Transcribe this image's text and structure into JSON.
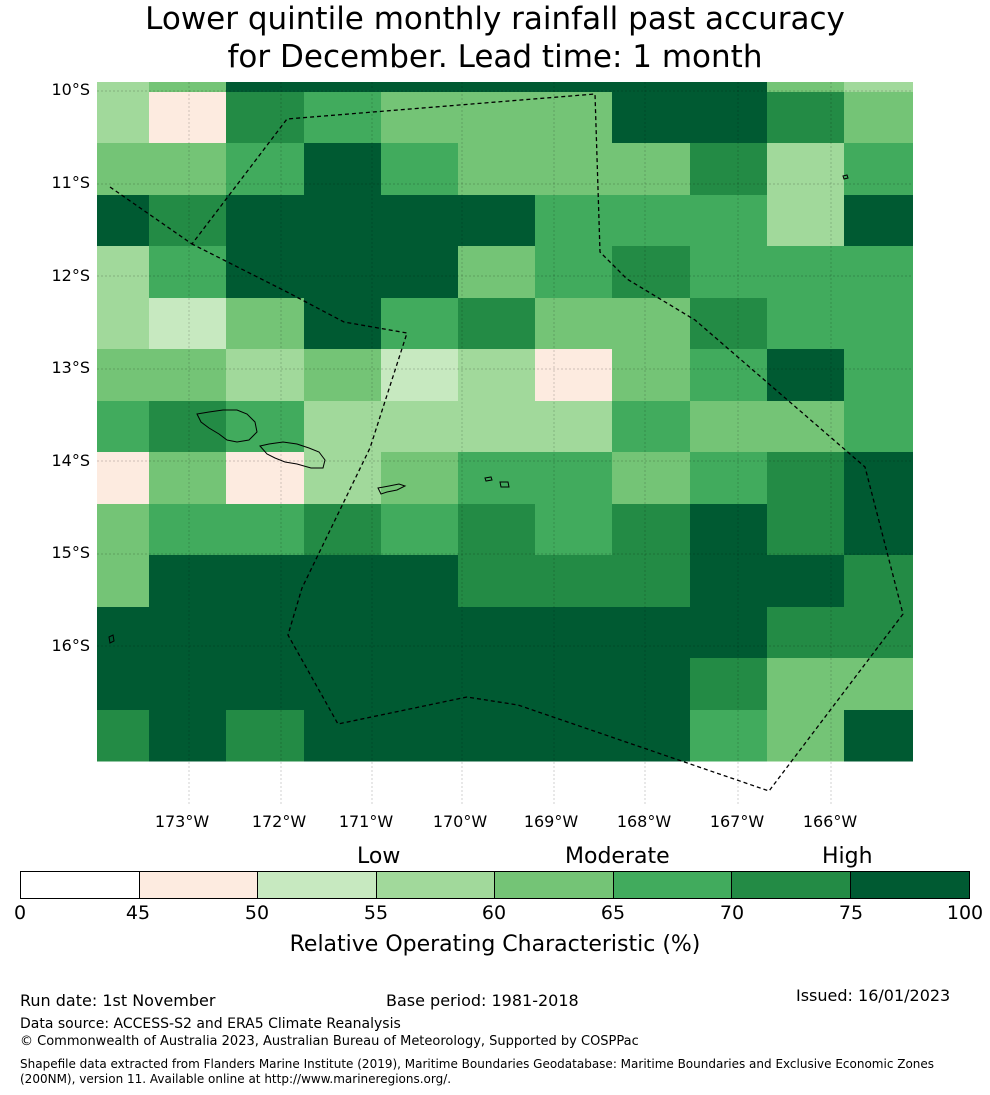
{
  "title": {
    "line1": "Lower quintile monthly rainfall past accuracy",
    "line2": "for December. Lead time: 1 month"
  },
  "axes": {
    "y_labels": [
      "10°S",
      "11°S",
      "12°S",
      "13°S",
      "14°S",
      "15°S",
      "16°S"
    ],
    "x_labels": [
      "173°W",
      "172°W",
      "171°W",
      "170°W",
      "169°W",
      "168°W",
      "167°W",
      "166°W"
    ]
  },
  "chart_data": {
    "type": "heatmap",
    "description_title": "Lower quintile monthly rainfall past accuracy for December. Lead time: 1 month",
    "x_range_deg": [
      -174.0,
      -165.2
    ],
    "y_range_deg": [
      -17.7,
      -9.9
    ],
    "grid_columns": 11,
    "grid_rows": 14,
    "palette": [
      "#ffffff",
      "#fdebe0",
      "#c7e9c0",
      "#a1d99b",
      "#74c476",
      "#41ab5d",
      "#238b45",
      "#005a32"
    ],
    "bins": [
      0,
      45,
      50,
      55,
      60,
      65,
      70,
      75,
      100
    ],
    "cells": [
      [
        3,
        4,
        7,
        7,
        7,
        7,
        7,
        7,
        7,
        4,
        3
      ],
      [
        3,
        1,
        6,
        5,
        4,
        4,
        4,
        7,
        7,
        6,
        4
      ],
      [
        4,
        4,
        5,
        7,
        5,
        4,
        4,
        4,
        6,
        3,
        5
      ],
      [
        7,
        6,
        7,
        7,
        7,
        7,
        5,
        5,
        5,
        3,
        7
      ],
      [
        3,
        5,
        7,
        7,
        7,
        4,
        5,
        6,
        5,
        5,
        5
      ],
      [
        3,
        2,
        4,
        7,
        5,
        6,
        4,
        4,
        6,
        5,
        5
      ],
      [
        4,
        4,
        3,
        4,
        2,
        3,
        1,
        4,
        5,
        7,
        5
      ],
      [
        5,
        6,
        5,
        3,
        3,
        3,
        3,
        5,
        4,
        4,
        5
      ],
      [
        1,
        4,
        1,
        3,
        4,
        5,
        5,
        4,
        5,
        6,
        7
      ],
      [
        4,
        5,
        5,
        6,
        5,
        6,
        5,
        6,
        7,
        6,
        7
      ],
      [
        4,
        7,
        7,
        7,
        7,
        6,
        6,
        6,
        7,
        7,
        6
      ],
      [
        7,
        7,
        7,
        7,
        7,
        7,
        7,
        7,
        7,
        6,
        6
      ],
      [
        7,
        7,
        7,
        7,
        7,
        7,
        7,
        7,
        6,
        4,
        4
      ],
      [
        6,
        7,
        6,
        7,
        7,
        7,
        7,
        7,
        5,
        4,
        7
      ]
    ]
  },
  "colorbar": {
    "ticks": [
      "0",
      "45",
      "50",
      "55",
      "60",
      "65",
      "70",
      "75",
      "100"
    ],
    "categories": [
      "Low",
      "Moderate",
      "High"
    ],
    "label": "Relative Operating Characteristic (%)"
  },
  "footer": {
    "run_date": "Run date: 1st November",
    "base_period": "Base period: 1981-2018",
    "issued": "Issued: 16/01/2023",
    "data_source": "Data source: ACCESS-S2 and ERA5 Climate Reanalysis",
    "copyright": "© Commonwealth of Australia 2023, Australian Bureau of Meteorology, Supported by COSPPac",
    "shapefile": "Shapefile data extracted from Flanders Marine Institute (2019), Maritime Boundaries Geodatabase: Maritime Boundaries and Exclusive Economic Zones (200NM), version 11. Available online at http://www.marineregions.org/."
  }
}
